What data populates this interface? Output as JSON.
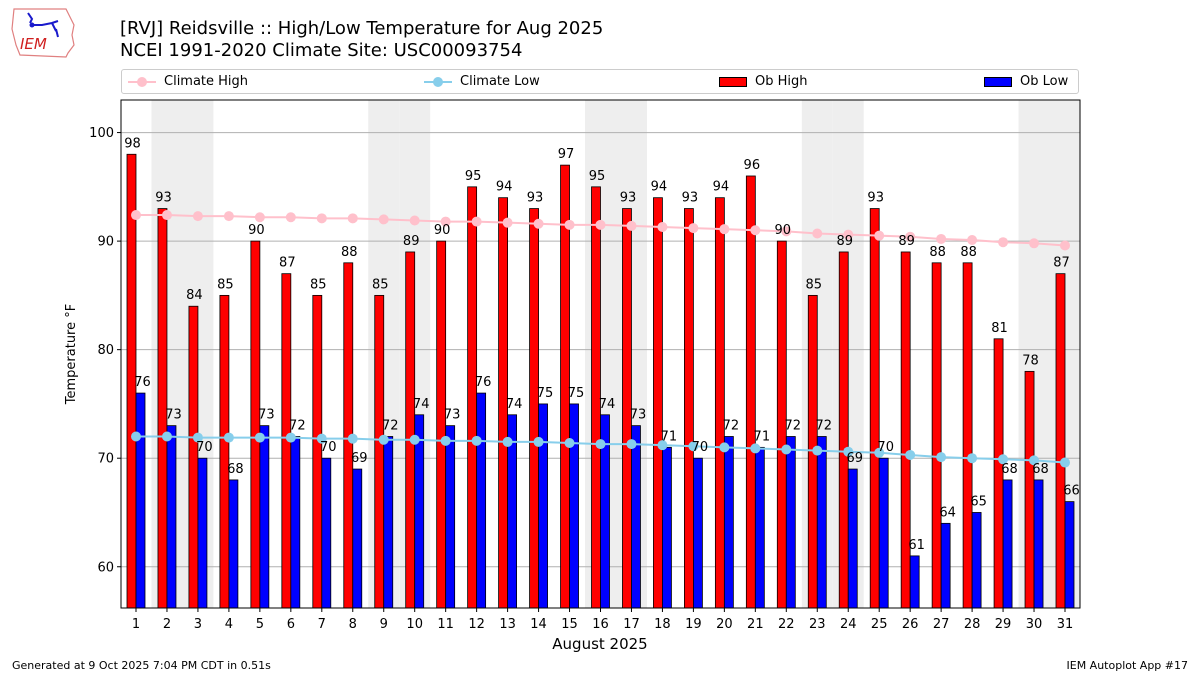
{
  "header": {
    "title_line1": "[RVJ] Reidsville :: High/Low Temperature for Aug 2025",
    "title_line2": "NCEI 1991-2020 Climate Site: USC00093754",
    "logo_text": "IEM"
  },
  "footer": {
    "generated": "Generated at 9 Oct 2025 7:04 PM CDT in 0.51s",
    "app": "IEM Autoplot App #17"
  },
  "colors": {
    "ob_high": "#ff0000",
    "ob_low": "#0000ff",
    "climate_high": "#ffc0cb",
    "climate_low": "#87ceeb",
    "weekend_shade": "#eeeeee",
    "grid": "#b0b0b0"
  },
  "chart_data": {
    "type": "bar",
    "title": "[RVJ] Reidsville :: High/Low Temperature for Aug 2025",
    "subtitle": "NCEI 1991-2020 Climate Site: USC00093754",
    "xlabel": "August 2025",
    "ylabel": "Temperature °F",
    "ylim": [
      56.2,
      103
    ],
    "yticks": [
      60,
      70,
      80,
      90,
      100
    ],
    "grid": "horizontal",
    "legend_position": "top",
    "legend": [
      "Climate High",
      "Climate Low",
      "Ob High",
      "Ob Low"
    ],
    "x": [
      1,
      2,
      3,
      4,
      5,
      6,
      7,
      8,
      9,
      10,
      11,
      12,
      13,
      14,
      15,
      16,
      17,
      18,
      19,
      20,
      21,
      22,
      23,
      24,
      25,
      26,
      27,
      28,
      29,
      30,
      31
    ],
    "shaded_days": [
      2,
      3,
      9,
      10,
      16,
      17,
      23,
      24,
      30,
      31
    ],
    "series": [
      {
        "name": "Ob High",
        "type": "bar",
        "values": [
          98,
          93,
          84,
          85,
          90,
          87,
          85,
          88,
          85,
          89,
          90,
          95,
          94,
          93,
          97,
          95,
          93,
          94,
          93,
          94,
          96,
          90,
          85,
          89,
          93,
          89,
          88,
          88,
          81,
          78,
          87
        ]
      },
      {
        "name": "Ob Low",
        "type": "bar",
        "values": [
          76,
          73,
          70,
          68,
          73,
          72,
          70,
          69,
          72,
          74,
          73,
          76,
          74,
          75,
          75,
          74,
          73,
          71,
          70,
          72,
          71,
          72,
          72,
          69,
          70,
          61,
          64,
          65,
          68,
          68,
          66
        ]
      },
      {
        "name": "Climate High",
        "type": "line",
        "values": [
          92.4,
          92.4,
          92.3,
          92.3,
          92.2,
          92.2,
          92.1,
          92.1,
          92.0,
          91.9,
          91.8,
          91.8,
          91.7,
          91.6,
          91.5,
          91.5,
          91.4,
          91.3,
          91.2,
          91.1,
          91.0,
          90.9,
          90.7,
          90.6,
          90.5,
          90.4,
          90.2,
          90.1,
          89.9,
          89.8,
          89.6
        ]
      },
      {
        "name": "Climate Low",
        "type": "line",
        "values": [
          72.0,
          72.0,
          71.9,
          71.9,
          71.9,
          71.9,
          71.8,
          71.8,
          71.7,
          71.7,
          71.6,
          71.6,
          71.5,
          71.5,
          71.4,
          71.3,
          71.3,
          71.2,
          71.1,
          71.0,
          70.9,
          70.8,
          70.7,
          70.6,
          70.5,
          70.3,
          70.1,
          70.0,
          69.9,
          69.8,
          69.6
        ]
      }
    ]
  }
}
